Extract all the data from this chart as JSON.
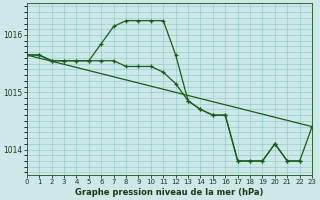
{
  "title": "Graphe pression niveau de la mer (hPa)",
  "background_color": "#cce8e8",
  "grid_color": "#99cccc",
  "line_color": "#1a5c1a",
  "line1_y": [
    1015.65,
    1015.65,
    1015.55,
    1015.55,
    1015.55,
    1015.55,
    1015.85,
    1016.15,
    1016.25,
    1016.25,
    1016.25,
    1016.25,
    1015.65,
    1014.85,
    1014.7,
    1014.6,
    1014.6,
    1013.8,
    1013.8,
    1013.8,
    1014.1,
    1013.8,
    1013.8,
    null
  ],
  "line2_y": [
    1015.65,
    1015.65,
    1015.55,
    1015.55,
    1015.55,
    1015.55,
    1015.55,
    1015.55,
    1015.45,
    1015.45,
    1015.45,
    1015.35,
    1015.15,
    1014.85,
    1014.7,
    1014.6,
    1014.6,
    1013.8,
    1013.8,
    1013.8,
    1014.1,
    1013.8,
    1013.8,
    1014.4
  ],
  "line3_x": [
    0,
    23
  ],
  "line3_y": [
    1015.65,
    1014.4
  ],
  "ylim": [
    1013.55,
    1016.55
  ],
  "yticks": [
    1014,
    1015,
    1016
  ],
  "xlim": [
    0,
    23
  ],
  "xticks": [
    0,
    1,
    2,
    3,
    4,
    5,
    6,
    7,
    8,
    9,
    10,
    11,
    12,
    13,
    14,
    15,
    16,
    17,
    18,
    19,
    20,
    21,
    22,
    23
  ]
}
